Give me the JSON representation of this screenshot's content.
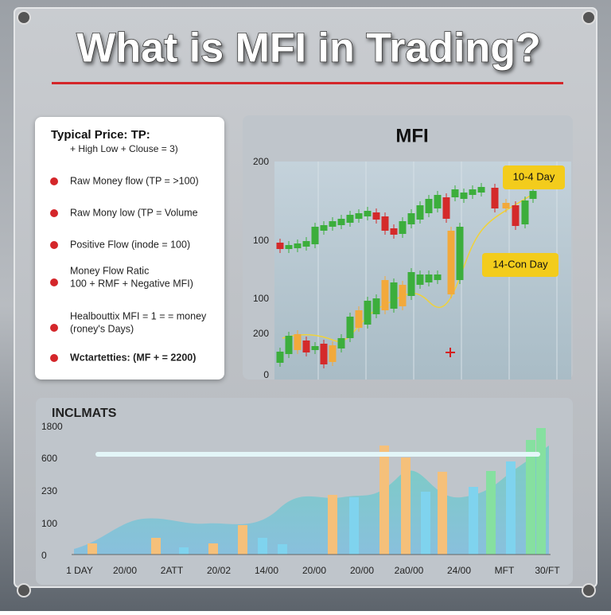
{
  "header": {
    "title": "What is MFI in Trading?"
  },
  "formula_panel": {
    "heading": "Typical Price: TP:",
    "formula": "+ High Low + Clouse = 3)",
    "items": [
      {
        "lines": [
          "Raw Money flow (TP = >100)"
        ]
      },
      {
        "lines": [
          "Raw Mony low (TP = Volume"
        ]
      },
      {
        "lines": [
          "Positive Flow (inode = 100)"
        ]
      },
      {
        "lines": [
          "Money Flow Ratic",
          "100 + RMF + Negative MFI)"
        ]
      },
      {
        "lines": [
          "Healbouttix MFI = 1 = = money",
          "(roney's Days)"
        ]
      },
      {
        "lines": [
          "Wctartetties: (MF + = 2200)"
        ]
      }
    ]
  },
  "candle_panel": {
    "title": "MFI",
    "y_labels": [
      "200",
      "100",
      "100",
      "200",
      "0"
    ],
    "callouts": [
      "10-4 Day",
      "14-Con Day"
    ]
  },
  "bar_panel": {
    "title": "INCLMATS",
    "y_labels": [
      "1800",
      "600",
      "230",
      "100",
      "0"
    ],
    "x_labels": [
      "1 DAY",
      "20/00",
      "2ATT",
      "20/02",
      "14/00",
      "20/00",
      "20/00",
      "2a0/00",
      "24/00",
      "MFT",
      "30/FT"
    ]
  }
}
